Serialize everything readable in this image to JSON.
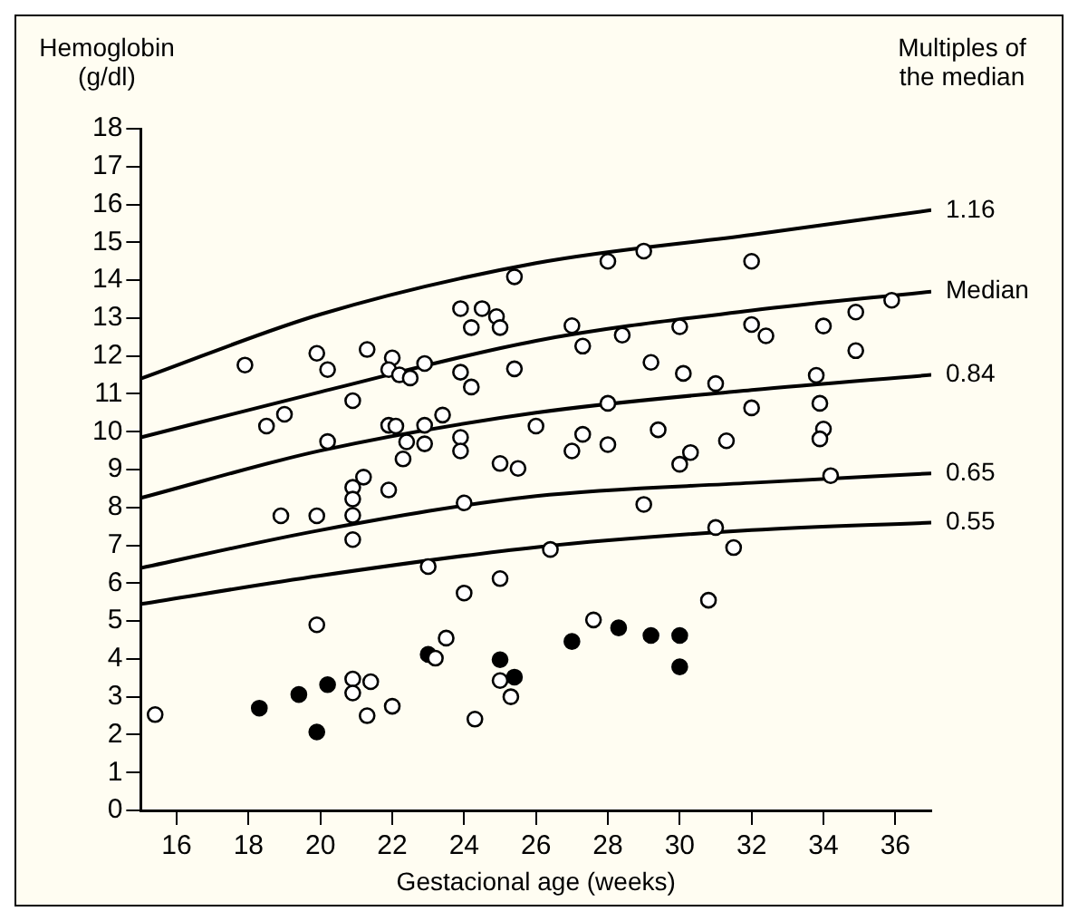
{
  "chart_data": {
    "type": "scatter",
    "ylabel": "Hemoglobin\n(g/dl)",
    "y2label": "Multiples of the median",
    "xlabel": "Gestacional age (weeks)",
    "xlim": [
      15,
      37
    ],
    "xticks": [
      16,
      18,
      20,
      22,
      24,
      26,
      28,
      30,
      32,
      34,
      36
    ],
    "ylim": [
      0,
      18
    ],
    "yticks": [
      0,
      1,
      2,
      3,
      4,
      5,
      6,
      7,
      8,
      9,
      10,
      11,
      12,
      13,
      14,
      15,
      16,
      17,
      18
    ],
    "grid": false,
    "legend": false,
    "series": [
      {
        "name": "1.16",
        "type": "line",
        "color": "#000000",
        "marker": "none",
        "x": [
          15,
          20,
          26,
          32,
          37
        ],
        "values": [
          11.4,
          13.1,
          14.45,
          15.2,
          15.85
        ]
      },
      {
        "name": "Median",
        "type": "line",
        "color": "#000000",
        "marker": "none",
        "x": [
          15,
          20,
          26,
          32,
          37
        ],
        "values": [
          9.85,
          11.05,
          12.4,
          13.2,
          13.7
        ]
      },
      {
        "name": "0.84",
        "type": "line",
        "color": "#000000",
        "marker": "none",
        "x": [
          15,
          20,
          26,
          32,
          37
        ],
        "values": [
          8.25,
          9.5,
          10.5,
          11.1,
          11.5
        ]
      },
      {
        "name": "0.65",
        "type": "line",
        "color": "#000000",
        "marker": "none",
        "x": [
          15,
          20,
          26,
          32,
          37
        ],
        "values": [
          6.4,
          7.4,
          8.3,
          8.65,
          8.9
        ]
      },
      {
        "name": "0.55",
        "type": "line",
        "color": "#000000",
        "marker": "none",
        "x": [
          15,
          20,
          26,
          32,
          37
        ],
        "values": [
          5.45,
          6.2,
          6.95,
          7.4,
          7.6
        ]
      },
      {
        "color": "#ffffff",
        "marker": "circle",
        "x": [
          17.9,
          19.9,
          20.2,
          21.3,
          22.0,
          21.9,
          22.2,
          22.5,
          22.9,
          20.9,
          18.5,
          19.0,
          20.2,
          21.9,
          22.1,
          22.9,
          23.4,
          22.4,
          22.9,
          22.3,
          21.2,
          20.9,
          20.9,
          21.9,
          20.9,
          18.9,
          19.9,
          20.9,
          15.4,
          19.9,
          20.9,
          20.9,
          21.4,
          21.3,
          22.0,
          23.0,
          23.2,
          23.5,
          24.0,
          25.0,
          24.3,
          25.0,
          25.3,
          26.4,
          27.6,
          30.8,
          31.0,
          31.5,
          29.0,
          25.4,
          28.0,
          29.0,
          32.0,
          23.9,
          24.5,
          24.9,
          25.0,
          24.2,
          27.0,
          28.4,
          30.0,
          32.0,
          32.4,
          34.0,
          34.9,
          35.9,
          34.9,
          27.3,
          25.4,
          23.9,
          24.2,
          29.2,
          30.1,
          31.0,
          33.8,
          33.9,
          34.0,
          33.9,
          32.0,
          28.0,
          23.9,
          23.9,
          26.0,
          27.3,
          27.0,
          28.0,
          29.4,
          30.3,
          30.0,
          31.3,
          25.0,
          25.5,
          34.2,
          24.0
        ],
        "values": [
          11.76,
          12.07,
          11.64,
          12.17,
          11.95,
          11.64,
          11.5,
          11.42,
          11.8,
          10.82,
          10.15,
          10.46,
          9.74,
          10.17,
          10.15,
          10.17,
          10.44,
          9.73,
          9.68,
          9.28,
          8.8,
          8.53,
          8.22,
          8.46,
          7.79,
          7.78,
          7.78,
          7.15,
          2.53,
          4.9,
          3.47,
          3.1,
          3.4,
          2.5,
          2.75,
          6.44,
          4.02,
          4.55,
          5.74,
          6.12,
          2.41,
          3.43,
          3.0,
          6.89,
          5.03,
          5.55,
          7.47,
          6.94,
          8.08,
          14.09,
          14.5,
          14.77,
          14.5,
          13.25,
          13.25,
          13.04,
          12.75,
          12.75,
          12.8,
          12.55,
          12.77,
          12.83,
          12.53,
          12.79,
          13.16,
          13.47,
          12.14,
          12.26,
          11.66,
          11.57,
          11.18,
          11.83,
          11.54,
          11.27,
          11.49,
          10.75,
          10.07,
          9.81,
          10.63,
          10.75,
          9.85,
          9.49,
          10.15,
          9.93,
          9.49,
          9.66,
          10.05,
          9.45,
          9.14,
          9.76,
          9.16,
          9.03,
          8.84,
          8.12
        ]
      },
      {
        "color": "#000000",
        "marker": "circle",
        "x": [
          18.3,
          19.4,
          20.2,
          19.9,
          23.0,
          25.0,
          25.4,
          27.0,
          28.3,
          29.2,
          30.0,
          30.0
        ],
        "values": [
          2.7,
          3.06,
          3.32,
          2.07,
          4.12,
          3.98,
          3.52,
          4.46,
          4.82,
          4.62,
          4.62,
          3.79
        ]
      }
    ]
  }
}
